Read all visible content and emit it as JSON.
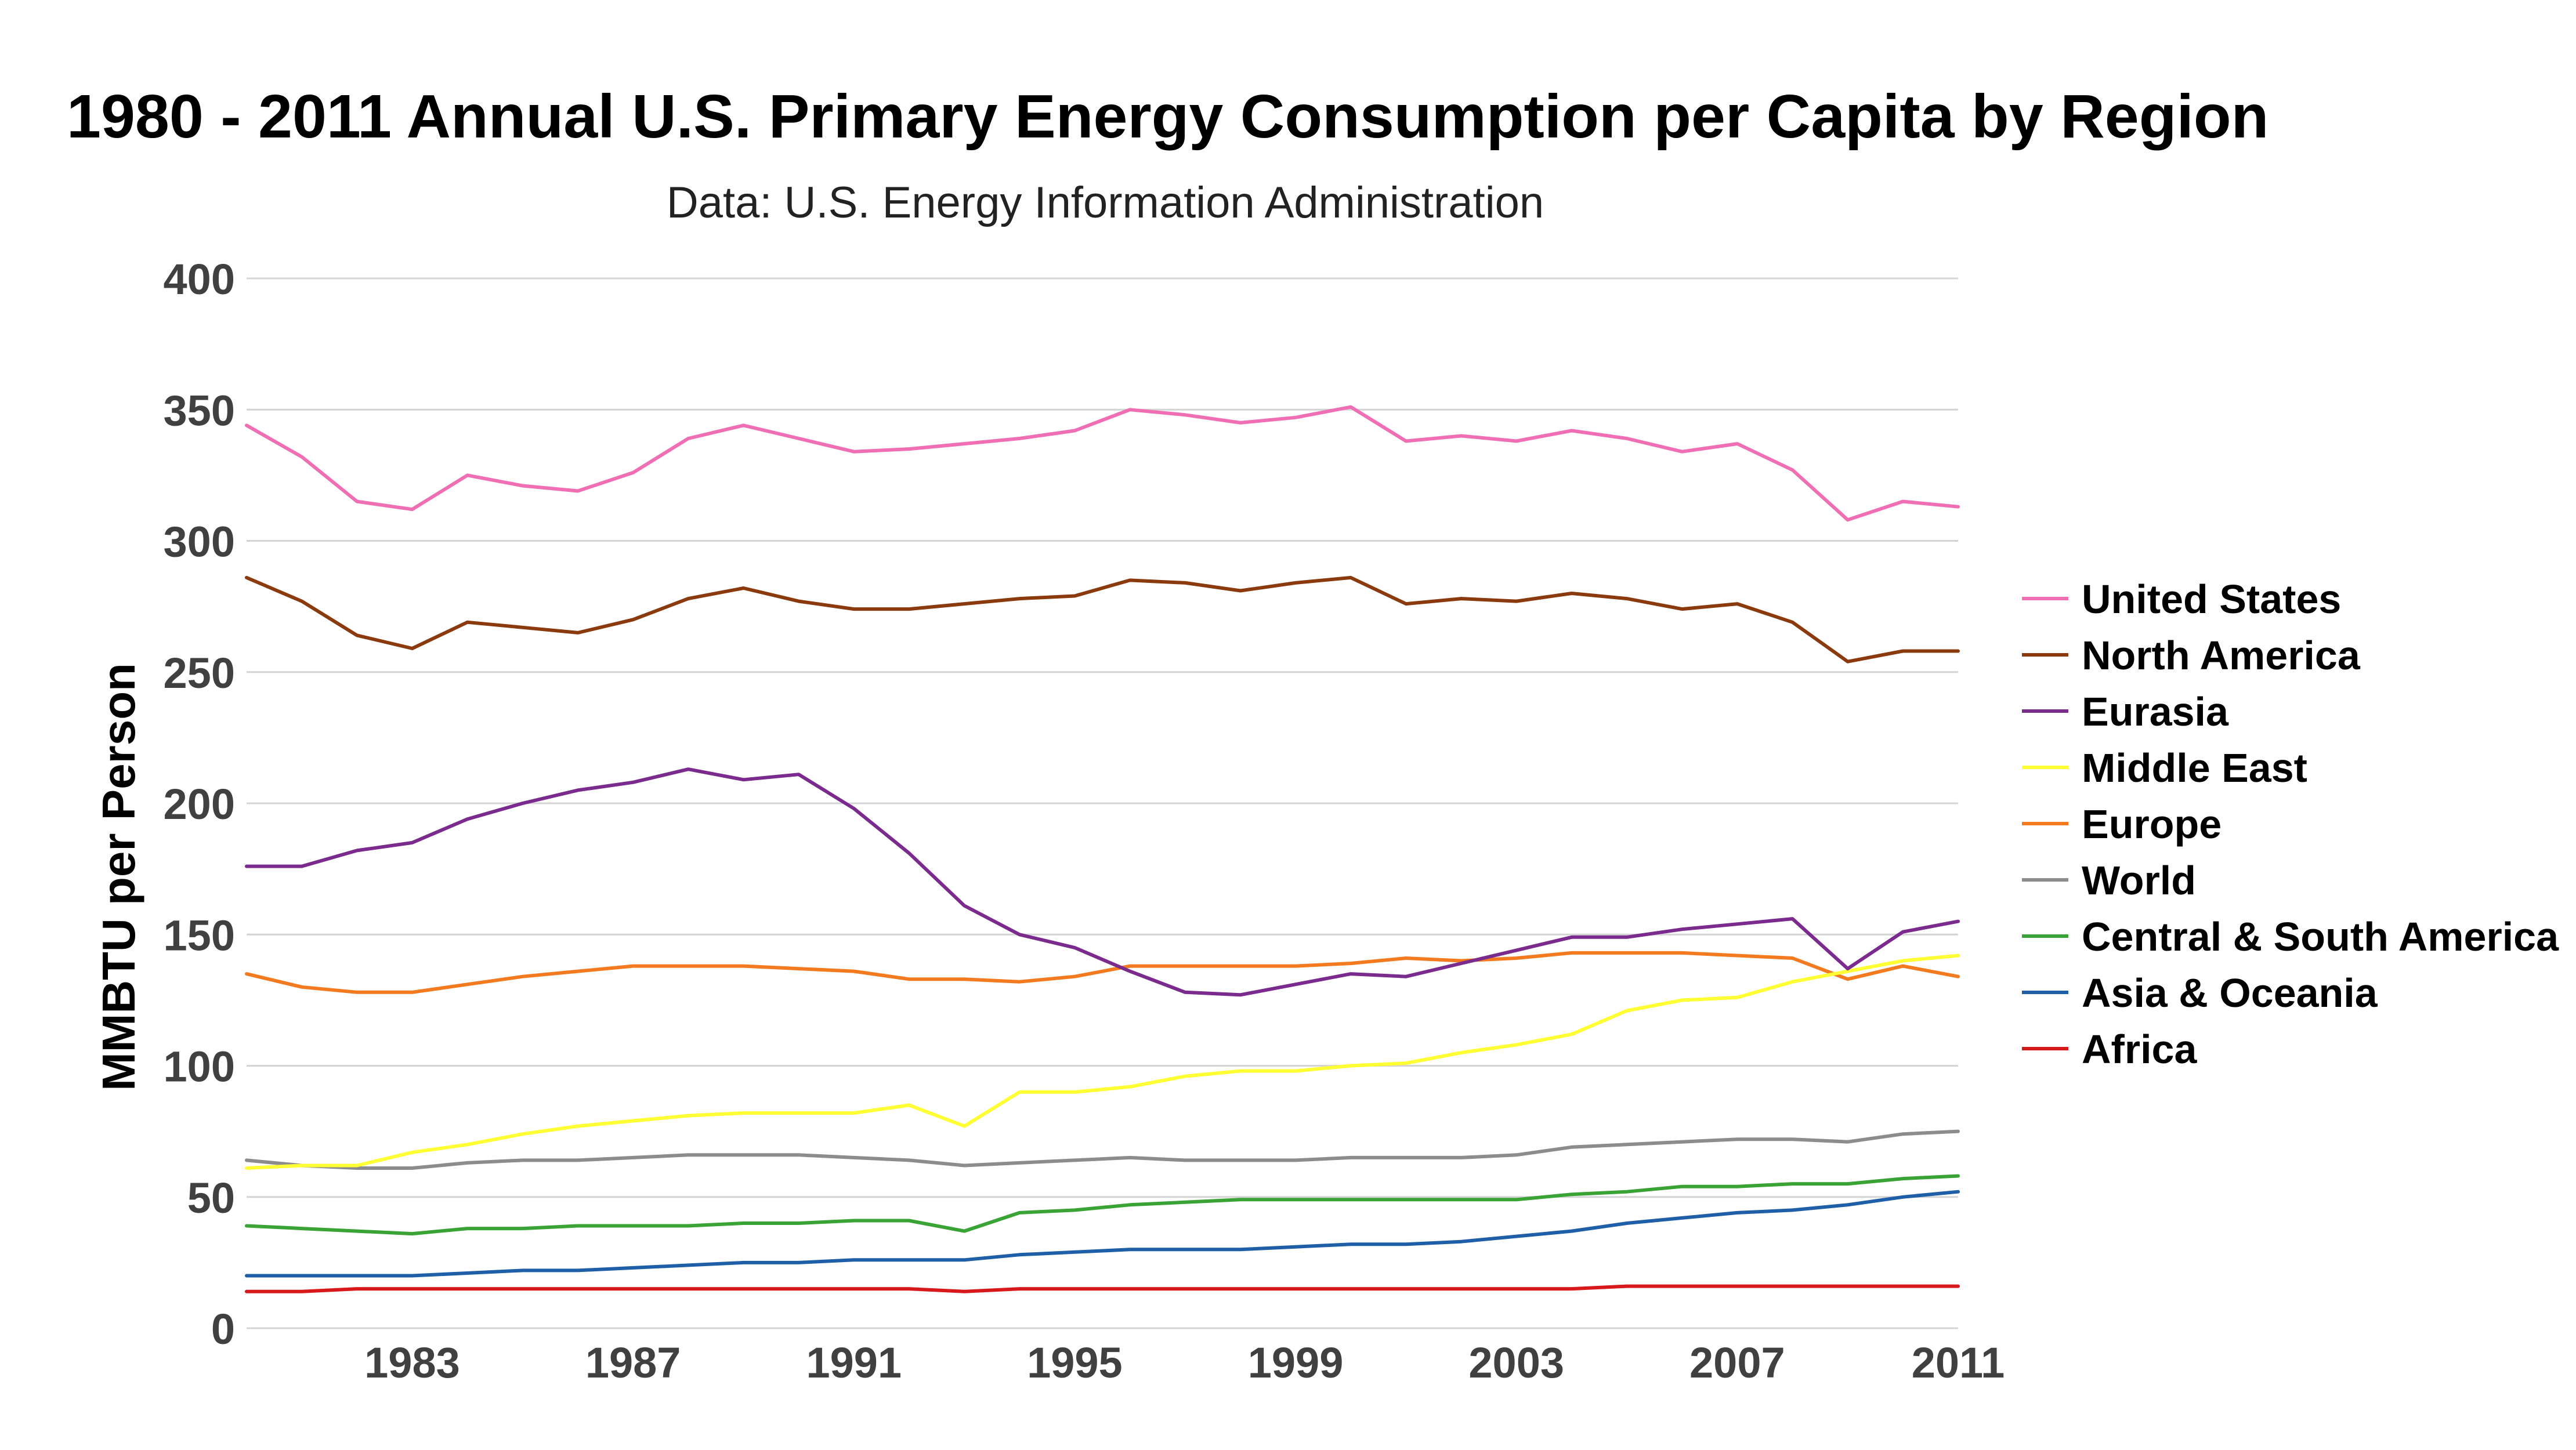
{
  "chart_data": {
    "type": "line",
    "title": "1980 - 2011 Annual U.S. Primary Energy Consumption per Capita by Region",
    "subtitle": "Data: U.S. Energy Information Administration",
    "xlabel": "",
    "ylabel": "MMBTU per Person",
    "xlim": [
      1980,
      2011
    ],
    "ylim": [
      0,
      400
    ],
    "y_ticks": [
      "0",
      "50",
      "100",
      "150",
      "200",
      "250",
      "300",
      "350",
      "400"
    ],
    "x_ticks": [
      "1983",
      "1987",
      "1991",
      "1995",
      "1999",
      "2003",
      "2007",
      "2011"
    ],
    "grid": "horizontal",
    "legend_position": "right",
    "x": [
      1980,
      1981,
      1982,
      1983,
      1984,
      1985,
      1986,
      1987,
      1988,
      1989,
      1990,
      1991,
      1992,
      1993,
      1994,
      1995,
      1996,
      1997,
      1998,
      1999,
      2000,
      2001,
      2002,
      2003,
      2004,
      2005,
      2006,
      2007,
      2008,
      2009,
      2010,
      2011
    ],
    "series": [
      {
        "name": "United States",
        "color": "#f06eb4",
        "values": [
          344,
          332,
          315,
          312,
          325,
          321,
          319,
          326,
          339,
          344,
          339,
          334,
          335,
          337,
          339,
          342,
          350,
          348,
          345,
          347,
          351,
          338,
          340,
          338,
          342,
          339,
          334,
          337,
          327,
          308,
          315,
          313
        ]
      },
      {
        "name": "North America",
        "color": "#8b3a0e",
        "values": [
          286,
          277,
          264,
          259,
          269,
          267,
          265,
          270,
          278,
          282,
          277,
          274,
          274,
          276,
          278,
          279,
          285,
          284,
          281,
          284,
          286,
          276,
          278,
          277,
          280,
          278,
          274,
          276,
          269,
          254,
          258,
          258
        ]
      },
      {
        "name": "Eurasia",
        "color": "#7b2a8e",
        "values": [
          176,
          176,
          182,
          185,
          194,
          200,
          205,
          208,
          213,
          209,
          211,
          198,
          181,
          161,
          150,
          145,
          136,
          128,
          127,
          131,
          135,
          134,
          139,
          144,
          149,
          149,
          152,
          154,
          156,
          137,
          151,
          155
        ]
      },
      {
        "name": "Middle East",
        "color": "#ffff33",
        "values": [
          61,
          62,
          62,
          67,
          70,
          74,
          77,
          79,
          81,
          82,
          82,
          82,
          85,
          77,
          90,
          90,
          92,
          96,
          98,
          98,
          100,
          101,
          105,
          108,
          112,
          121,
          125,
          126,
          132,
          136,
          140,
          142
        ]
      },
      {
        "name": "Europe",
        "color": "#f47a20",
        "values": [
          135,
          130,
          128,
          128,
          131,
          134,
          136,
          138,
          138,
          138,
          137,
          136,
          133,
          133,
          132,
          134,
          138,
          138,
          138,
          138,
          139,
          141,
          140,
          141,
          143,
          143,
          143,
          142,
          141,
          133,
          138,
          134
        ]
      },
      {
        "name": "World",
        "color": "#8c8c8c",
        "values": [
          64,
          62,
          61,
          61,
          63,
          64,
          64,
          65,
          66,
          66,
          66,
          65,
          64,
          62,
          63,
          64,
          65,
          64,
          64,
          64,
          65,
          65,
          65,
          66,
          69,
          70,
          71,
          72,
          72,
          71,
          74,
          75
        ]
      },
      {
        "name": "Central & South America",
        "color": "#3aa335",
        "values": [
          39,
          38,
          37,
          36,
          38,
          38,
          39,
          39,
          39,
          40,
          40,
          41,
          41,
          37,
          44,
          45,
          47,
          48,
          49,
          49,
          49,
          49,
          49,
          49,
          51,
          52,
          54,
          54,
          55,
          55,
          57,
          58
        ]
      },
      {
        "name": "Asia & Oceania",
        "color": "#1f5fa8",
        "values": [
          20,
          20,
          20,
          20,
          21,
          22,
          22,
          23,
          24,
          25,
          25,
          26,
          26,
          26,
          28,
          29,
          30,
          30,
          30,
          31,
          32,
          32,
          33,
          35,
          37,
          40,
          42,
          44,
          45,
          47,
          50,
          52
        ]
      },
      {
        "name": "Africa",
        "color": "#d7191c",
        "values": [
          14,
          14,
          15,
          15,
          15,
          15,
          15,
          15,
          15,
          15,
          15,
          15,
          15,
          14,
          15,
          15,
          15,
          15,
          15,
          15,
          15,
          15,
          15,
          15,
          15,
          16,
          16,
          16,
          16,
          16,
          16,
          16
        ]
      }
    ]
  }
}
